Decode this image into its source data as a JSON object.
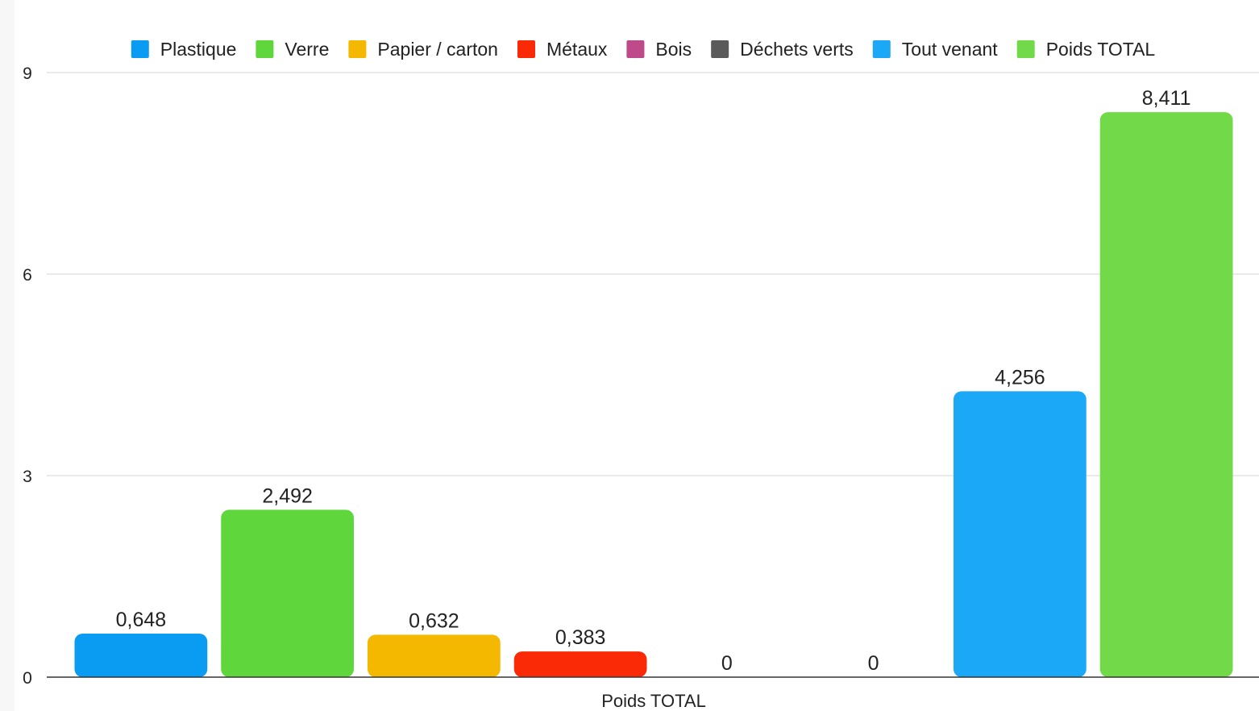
{
  "chart_data": {
    "type": "bar",
    "categories": [
      "Poids TOTAL"
    ],
    "series": [
      {
        "name": "Plastique",
        "values": [
          0.648
        ],
        "label": "0,648",
        "color": "#0a9cf2"
      },
      {
        "name": "Verre",
        "values": [
          2.492
        ],
        "label": "2,492",
        "color": "#5fd63c"
      },
      {
        "name": "Papier / carton",
        "values": [
          0.632
        ],
        "label": "0,632",
        "color": "#f5b800"
      },
      {
        "name": "Métaux",
        "values": [
          0.383
        ],
        "label": "0,383",
        "color": "#fa2a06"
      },
      {
        "name": "Bois",
        "values": [
          0
        ],
        "label": "0",
        "color": "#bf4a8a"
      },
      {
        "name": "Déchets verts",
        "values": [
          0
        ],
        "label": "0",
        "color": "#5a5a5a"
      },
      {
        "name": "Tout venant",
        "values": [
          4.256
        ],
        "label": "4,256",
        "color": "#1aa8f7"
      },
      {
        "name": "Poids TOTAL",
        "values": [
          8.411
        ],
        "label": "8,411",
        "color": "#72da48"
      }
    ],
    "y_ticks": [
      "0",
      "3",
      "6",
      "9"
    ],
    "ylim": [
      0,
      9
    ],
    "grid": true,
    "legend_position": "top"
  }
}
